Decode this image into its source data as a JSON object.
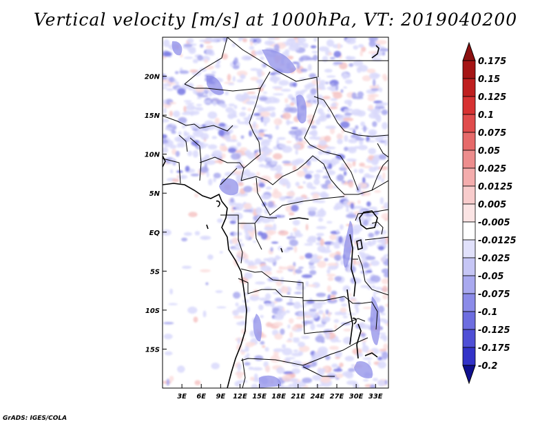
{
  "title": "Vertical velocity [m/s] at 1000hPa, VT: 2019040200",
  "credit": "GrADS: IGES/COLA",
  "map": {
    "lon_range": [
      0,
      35
    ],
    "lat_range": [
      -20,
      25
    ],
    "lat_ticks": [
      {
        "value": 20,
        "label": "20N"
      },
      {
        "value": 15,
        "label": "15N"
      },
      {
        "value": 10,
        "label": "10N"
      },
      {
        "value": 5,
        "label": "5N"
      },
      {
        "value": 0,
        "label": "EQ"
      },
      {
        "value": -5,
        "label": "5S"
      },
      {
        "value": -10,
        "label": "10S"
      },
      {
        "value": -15,
        "label": "15S"
      }
    ],
    "lon_ticks": [
      {
        "value": 3,
        "label": "3E"
      },
      {
        "value": 6,
        "label": "6E"
      },
      {
        "value": 9,
        "label": "9E"
      },
      {
        "value": 12,
        "label": "12E"
      },
      {
        "value": 15,
        "label": "15E"
      },
      {
        "value": 18,
        "label": "18E"
      },
      {
        "value": 21,
        "label": "21E"
      },
      {
        "value": 24,
        "label": "24E"
      },
      {
        "value": 27,
        "label": "27E"
      },
      {
        "value": 30,
        "label": "30E"
      },
      {
        "value": 33,
        "label": "33E"
      }
    ]
  },
  "colorbar": {
    "levels": [
      {
        "label": "0.175",
        "color": "#a51515"
      },
      {
        "label": "0.15",
        "color": "#bf1f1f"
      },
      {
        "label": "0.125",
        "color": "#d73232"
      },
      {
        "label": "0.1",
        "color": "#e04c4c"
      },
      {
        "label": "0.075",
        "color": "#e66a6a"
      },
      {
        "label": "0.05",
        "color": "#ed8d8d"
      },
      {
        "label": "0.025",
        "color": "#f4adad"
      },
      {
        "label": "0.0125",
        "color": "#f8cccc"
      },
      {
        "label": "0.005",
        "color": "#fbe4e4"
      },
      {
        "label": "-0.005",
        "color": "#ffffff"
      },
      {
        "label": "-0.0125",
        "color": "#e1e1fb"
      },
      {
        "label": "-0.025",
        "color": "#c6c6f5"
      },
      {
        "label": "-0.05",
        "color": "#a9a9ef"
      },
      {
        "label": "-0.075",
        "color": "#8b8be8"
      },
      {
        "label": "-0.1",
        "color": "#6d6de0"
      },
      {
        "label": "-0.125",
        "color": "#4f4fd6"
      },
      {
        "label": "-0.175",
        "color": "#3333c8"
      },
      {
        "label": "-0.2",
        "color": "#1a1ab0"
      }
    ],
    "top_triangle_color": "#8b1010",
    "bottom_triangle_color": "#10108f"
  },
  "colors": {
    "negative_light": "#d9d9fb",
    "negative_mid": "#a9a9ef",
    "negative_dark": "#7a7ae4",
    "positive_light": "#fbdede",
    "positive_mid": "#f6c4c4"
  }
}
